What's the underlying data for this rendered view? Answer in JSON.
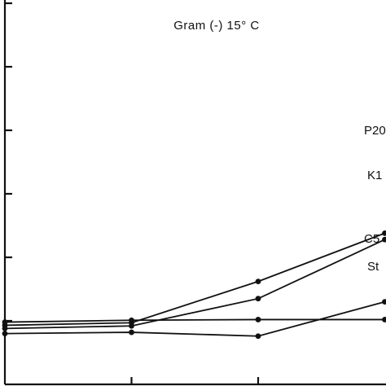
{
  "chart_data": {
    "type": "line",
    "title": "Gram (-) 15° C",
    "xlabel": "",
    "ylabel": "",
    "x": [
      0,
      1,
      2,
      3
    ],
    "xlim": [
      0,
      3
    ],
    "ylim": [
      0,
      7
    ],
    "y_ticks": [
      1,
      2,
      3,
      4,
      5,
      6,
      7
    ],
    "grid": false,
    "legend": "none",
    "series": [
      {
        "name": "P20",
        "values": [
          0.93,
          0.97,
          1.62,
          2.38
        ]
      },
      {
        "name": "K1",
        "values": [
          0.88,
          0.92,
          1.35,
          2.28
        ]
      },
      {
        "name": "C5",
        "values": [
          0.8,
          0.82,
          0.76,
          1.3
        ]
      },
      {
        "name": "St",
        "values": [
          0.98,
          1.01,
          1.02,
          1.02
        ]
      }
    ]
  }
}
